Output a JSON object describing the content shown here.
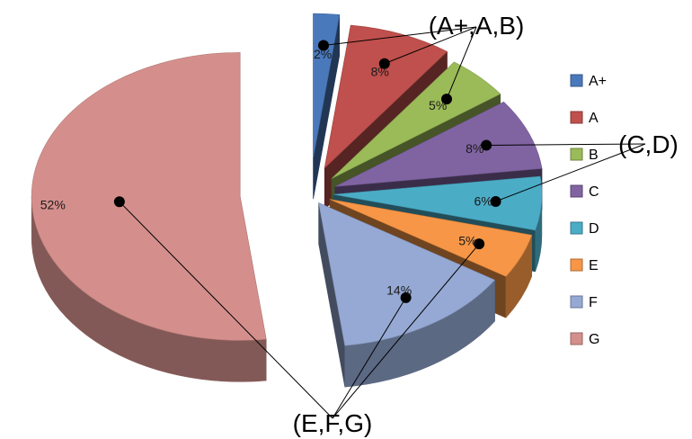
{
  "chart_data": {
    "type": "pie",
    "title": "",
    "categories": [
      "A+",
      "A",
      "B",
      "C",
      "D",
      "E",
      "F",
      "G"
    ],
    "values": [
      2,
      8,
      5,
      8,
      6,
      5,
      14,
      52
    ],
    "value_labels": [
      "2%",
      "8%",
      "5%",
      "8%",
      "6%",
      "5%",
      "14%",
      "52%"
    ],
    "colors": [
      "#4a79bb",
      "#c0504d",
      "#9bbb59",
      "#8064a2",
      "#4bacc6",
      "#f79646",
      "#95a9d4",
      "#d48f8c"
    ],
    "style": "3d-exploded",
    "legend_position": "right",
    "groups": [
      {
        "label": "(A+,A,B)",
        "members": [
          "A+",
          "A",
          "B"
        ]
      },
      {
        "label": "(C,D)",
        "members": [
          "C",
          "D"
        ]
      },
      {
        "label": "(E,F,G)",
        "members": [
          "E",
          "F",
          "G"
        ]
      }
    ]
  }
}
